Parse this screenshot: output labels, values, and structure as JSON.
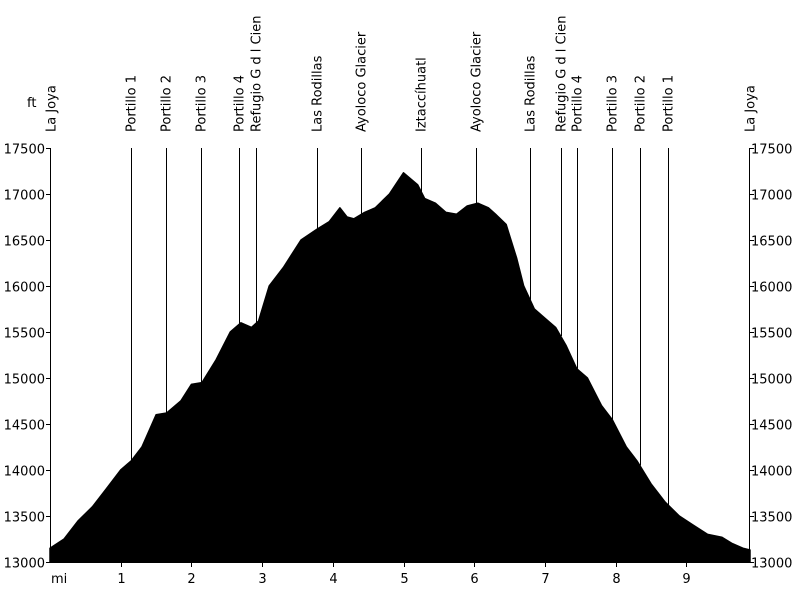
{
  "chart_data": {
    "type": "area",
    "x_unit_label": "mi",
    "y_unit_label": "ft",
    "xlim": [
      0,
      9.9
    ],
    "ylim": [
      13000,
      17500
    ],
    "x_ticks": [
      1,
      2,
      3,
      4,
      5,
      6,
      7,
      8,
      9
    ],
    "y_ticks": [
      13000,
      13500,
      14000,
      14500,
      15000,
      15500,
      16000,
      16500,
      17000,
      17500
    ],
    "fill_color": "#000000",
    "series": [
      {
        "x": [
          0,
          0.2,
          0.4,
          0.6,
          0.8,
          1.0,
          1.15,
          1.3,
          1.5,
          1.65,
          1.85,
          2.0,
          2.15,
          2.35,
          2.55,
          2.7,
          2.85,
          2.95,
          3.1,
          3.3,
          3.55,
          3.78,
          3.95,
          4.1,
          4.2,
          4.3,
          4.45,
          4.6,
          4.8,
          5.0,
          5.2,
          5.3,
          5.45,
          5.6,
          5.75,
          5.9,
          6.05,
          6.2,
          6.3,
          6.45,
          6.6,
          6.7,
          6.85,
          7.0,
          7.15,
          7.3,
          7.45,
          7.6,
          7.8,
          7.95,
          8.15,
          8.3,
          8.5,
          8.7,
          8.9,
          9.1,
          9.3,
          9.5,
          9.65,
          9.8,
          9.9
        ],
        "y": [
          13150,
          13250,
          13450,
          13600,
          13800,
          14000,
          14100,
          14250,
          14600,
          14620,
          14750,
          14930,
          14950,
          15200,
          15500,
          15600,
          15550,
          15620,
          16000,
          16200,
          16500,
          16620,
          16700,
          16850,
          16750,
          16730,
          16800,
          16850,
          17000,
          17230,
          17100,
          16950,
          16900,
          16800,
          16780,
          16870,
          16900,
          16850,
          16780,
          16670,
          16300,
          16000,
          15750,
          15650,
          15550,
          15350,
          15100,
          15000,
          14700,
          14550,
          14250,
          14100,
          13850,
          13650,
          13500,
          13400,
          13300,
          13270,
          13200,
          13150,
          13130
        ]
      }
    ],
    "waypoints": [
      {
        "x": 0.02,
        "label": "La Joya"
      },
      {
        "x": 1.14,
        "label": "Portillo 1"
      },
      {
        "x": 1.64,
        "label": "Portillo 2"
      },
      {
        "x": 2.14,
        "label": "Portillo 3"
      },
      {
        "x": 2.68,
        "label": "Portillo 4"
      },
      {
        "x": 2.91,
        "label": "Refugio G d l Cien"
      },
      {
        "x": 3.77,
        "label": "Las Rodillas"
      },
      {
        "x": 4.4,
        "label": "Ayoloco Glacier"
      },
      {
        "x": 5.25,
        "label": "Iztaccíhuatl"
      },
      {
        "x": 6.03,
        "label": "Ayoloco Glacier"
      },
      {
        "x": 6.79,
        "label": "Las Rodillas"
      },
      {
        "x": 7.22,
        "label": "Refugio G d l Cien"
      },
      {
        "x": 7.45,
        "label": "Portillo 4"
      },
      {
        "x": 7.95,
        "label": "Portillo 3"
      },
      {
        "x": 8.34,
        "label": "Portillo 2"
      },
      {
        "x": 8.74,
        "label": "Portillo 1"
      },
      {
        "x": 9.9,
        "label": "La Joya"
      }
    ]
  }
}
